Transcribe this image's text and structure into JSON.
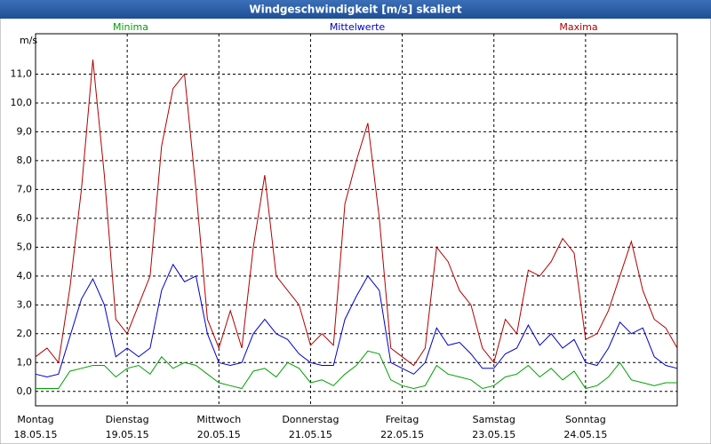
{
  "chart_data": {
    "type": "line",
    "title": "Windgeschwindigkeit [m/s] skaliert",
    "y_label": "m/s",
    "xlim": [
      0,
      7
    ],
    "xticks": [
      {
        "value": 0,
        "label": "Montag"
      },
      {
        "value": 1,
        "label": "Dienstag"
      },
      {
        "value": 2,
        "label": "Mittwoch"
      },
      {
        "value": 3,
        "label": "Donnerstag"
      },
      {
        "value": 4,
        "label": "Freitag"
      },
      {
        "value": 5,
        "label": "Samstag"
      },
      {
        "value": 6,
        "label": "Sonntag"
      }
    ],
    "xtick_dates": [
      "18.05.15",
      "19.05.15",
      "20.05.15",
      "21.05.15",
      "22.05.15",
      "23.05.15",
      "24.05.15"
    ],
    "ylim": [
      -0.5,
      12.4
    ],
    "yticks": [
      {
        "value": 0,
        "label": "0,0"
      },
      {
        "value": 1,
        "label": "1,0"
      },
      {
        "value": 2,
        "label": "2,0"
      },
      {
        "value": 3,
        "label": "3,0"
      },
      {
        "value": 4,
        "label": "4,0"
      },
      {
        "value": 5,
        "label": "5,0"
      },
      {
        "value": 6,
        "label": "6,0"
      },
      {
        "value": 7,
        "label": "7,0"
      },
      {
        "value": 8,
        "label": "8,0"
      },
      {
        "value": 9,
        "label": "9,0"
      },
      {
        "value": 10,
        "label": "10,0"
      },
      {
        "value": 11,
        "label": "11,0"
      }
    ],
    "grid": true,
    "x": [
      0,
      0.125,
      0.25,
      0.375,
      0.5,
      0.625,
      0.75,
      0.875,
      1,
      1.125,
      1.25,
      1.375,
      1.5,
      1.625,
      1.75,
      1.875,
      2,
      2.125,
      2.25,
      2.375,
      2.5,
      2.625,
      2.75,
      2.875,
      3,
      3.125,
      3.25,
      3.375,
      3.5,
      3.625,
      3.75,
      3.875,
      4,
      4.125,
      4.25,
      4.375,
      4.5,
      4.625,
      4.75,
      4.875,
      5,
      5.125,
      5.25,
      5.375,
      5.5,
      5.625,
      5.75,
      5.875,
      6,
      6.125,
      6.25,
      6.375,
      6.5,
      6.625,
      6.75,
      6.875,
      7
    ],
    "series": [
      {
        "name": "Minima",
        "color": "#00a000",
        "values": [
          0.1,
          0.1,
          0.1,
          0.7,
          0.8,
          0.9,
          0.9,
          0.5,
          0.8,
          0.9,
          0.6,
          1.2,
          0.8,
          1.0,
          0.9,
          0.6,
          0.3,
          0.2,
          0.1,
          0.7,
          0.8,
          0.5,
          1.0,
          0.8,
          0.3,
          0.4,
          0.2,
          0.6,
          0.9,
          1.4,
          1.3,
          0.4,
          0.2,
          0.1,
          0.2,
          0.9,
          0.6,
          0.5,
          0.4,
          0.1,
          0.2,
          0.5,
          0.6,
          0.9,
          0.5,
          0.8,
          0.4,
          0.7,
          0.1,
          0.2,
          0.5,
          1.0,
          0.4,
          0.3,
          0.2,
          0.3,
          0.3
        ]
      },
      {
        "name": "Mittelwerte",
        "color": "#0000c8",
        "values": [
          0.6,
          0.5,
          0.6,
          1.9,
          3.2,
          3.9,
          3.0,
          1.2,
          1.5,
          1.2,
          1.5,
          3.5,
          4.4,
          3.8,
          4.0,
          2.0,
          1.0,
          0.9,
          1.0,
          2.0,
          2.5,
          2.0,
          1.8,
          1.3,
          1.0,
          0.9,
          0.9,
          2.5,
          3.3,
          4.0,
          3.5,
          1.0,
          0.8,
          0.6,
          1.0,
          2.2,
          1.6,
          1.7,
          1.3,
          0.8,
          0.8,
          1.3,
          1.5,
          2.3,
          1.6,
          2.0,
          1.5,
          1.8,
          1.0,
          0.9,
          1.5,
          2.4,
          2.0,
          2.2,
          1.2,
          0.9,
          0.8
        ]
      },
      {
        "name": "Maxima",
        "color": "#b00000",
        "values": [
          1.2,
          1.5,
          1.0,
          3.6,
          7.0,
          11.5,
          7.5,
          2.5,
          2.0,
          3.0,
          4.0,
          8.5,
          10.5,
          11.0,
          7.0,
          2.5,
          1.5,
          2.8,
          1.5,
          5.0,
          7.5,
          4.0,
          3.5,
          3.0,
          1.6,
          2.0,
          1.6,
          6.5,
          8.0,
          9.3,
          6.0,
          1.5,
          1.2,
          0.9,
          1.5,
          5.0,
          4.5,
          3.5,
          3.0,
          1.5,
          1.0,
          2.5,
          2.0,
          4.2,
          4.0,
          4.5,
          5.3,
          4.8,
          1.8,
          2.0,
          2.8,
          4.0,
          5.2,
          3.5,
          2.5,
          2.2,
          1.5
        ]
      }
    ]
  }
}
